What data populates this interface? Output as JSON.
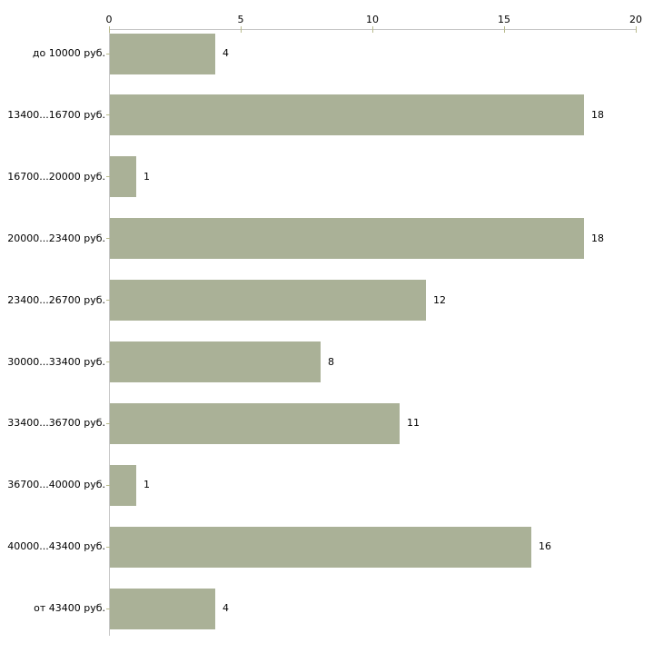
{
  "chart_data": {
    "type": "bar",
    "orientation": "horizontal",
    "title": "",
    "categories": [
      "до 10000 руб.",
      "13400...16700 руб.",
      "16700...20000 руб.",
      "20000...23400 руб.",
      "23400...26700 руб.",
      "30000...33400 руб.",
      "33400...36700 руб.",
      "36700...40000 руб.",
      "40000...43400 руб.",
      "от 43400 руб."
    ],
    "values": [
      4,
      18,
      1,
      18,
      12,
      8,
      11,
      1,
      16,
      4
    ],
    "x_ticks": [
      0,
      5,
      10,
      15,
      20
    ],
    "xlim": [
      0,
      20
    ],
    "xlabel": "",
    "ylabel": "",
    "grid": false,
    "legend": null,
    "value_labels_shown": true,
    "colors": {
      "bar": "#aab197",
      "axis_line": "#c6c6c6",
      "tick_mark": "#b9bb8d",
      "text": "#000000",
      "background": "#ffffff"
    }
  }
}
